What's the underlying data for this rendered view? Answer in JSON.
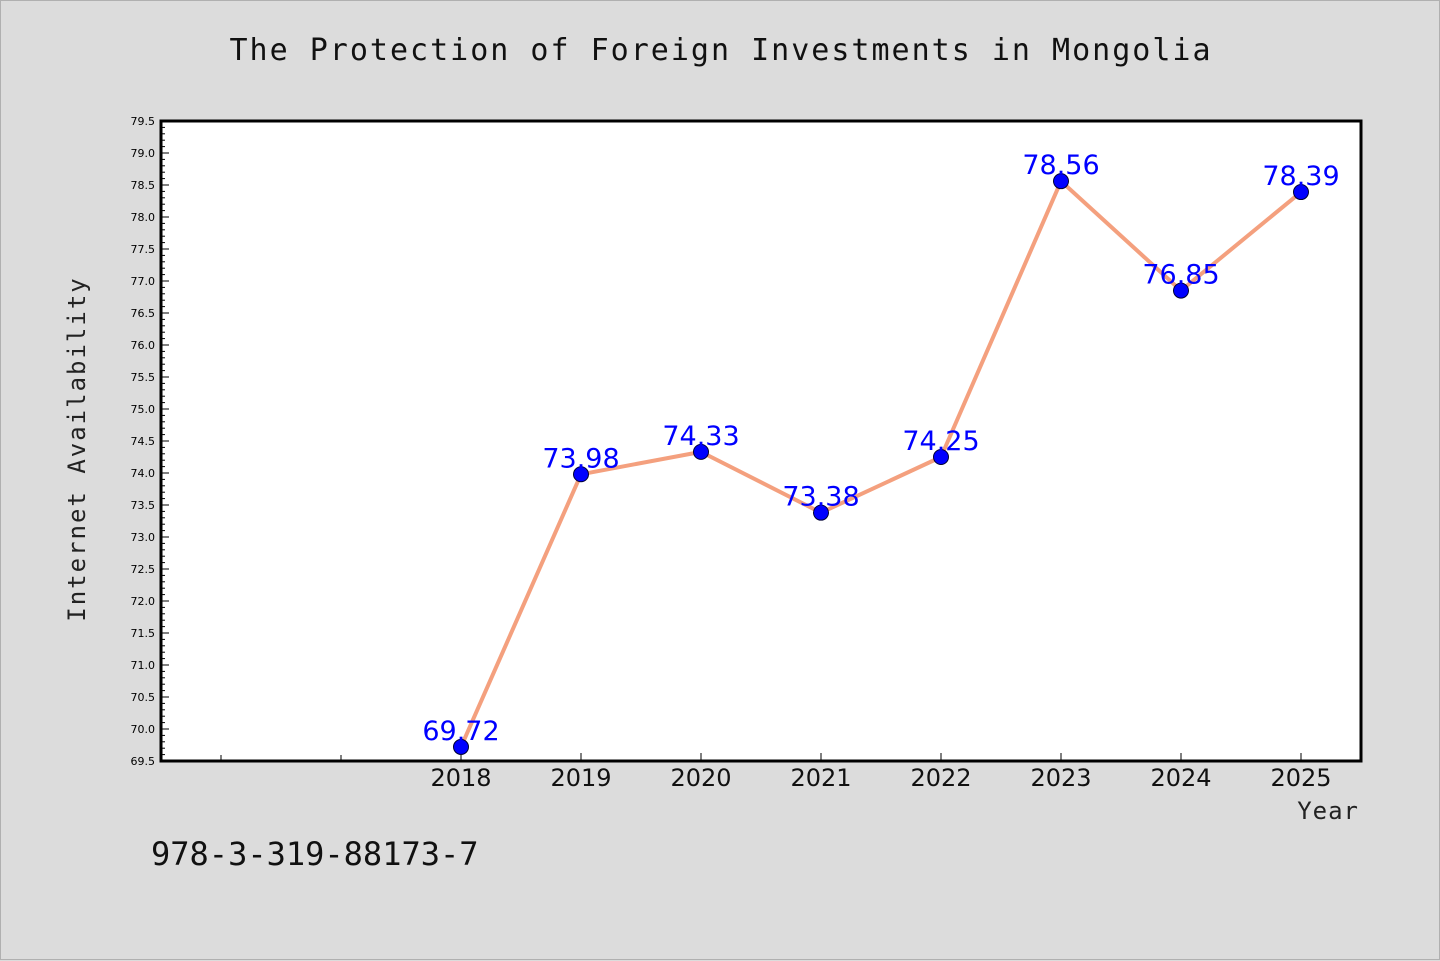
{
  "chart_data": {
    "type": "line",
    "title": "The Protection of Foreign Investments in Mongolia",
    "xlabel": "Year",
    "ylabel": "Internet Availability",
    "x": [
      "2018",
      "2019",
      "2020",
      "2021",
      "2022",
      "2023",
      "2024",
      "2025"
    ],
    "series": [
      {
        "values": [
          69.72,
          73.98,
          74.33,
          73.38,
          74.25,
          78.56,
          76.85,
          78.39
        ],
        "data_labels": [
          "69.72",
          "73.98",
          "74.33",
          "73.38",
          "74.25",
          "78.56",
          "76.85",
          "78.39"
        ]
      }
    ],
    "ylim": [
      69.5,
      79.5
    ],
    "y_ticks": [
      "69.5",
      "70.0",
      "70.5",
      "71.0",
      "71.5",
      "72.0",
      "72.5",
      "73.0",
      "73.5",
      "74.0",
      "74.5",
      "75.0",
      "75.5",
      "76.0",
      "76.5",
      "77.0",
      "77.5",
      "78.0",
      "78.5",
      "79.0",
      "79.5"
    ],
    "grid": false,
    "legend": "none",
    "colors": {
      "line": "#f4a07e",
      "marker": "#0000ff",
      "label": "#0000ff",
      "plot_bg": "#ffffff",
      "page_bg": "#dcdcdc"
    }
  },
  "footer": {
    "isbn": "978-3-319-88173-7"
  }
}
